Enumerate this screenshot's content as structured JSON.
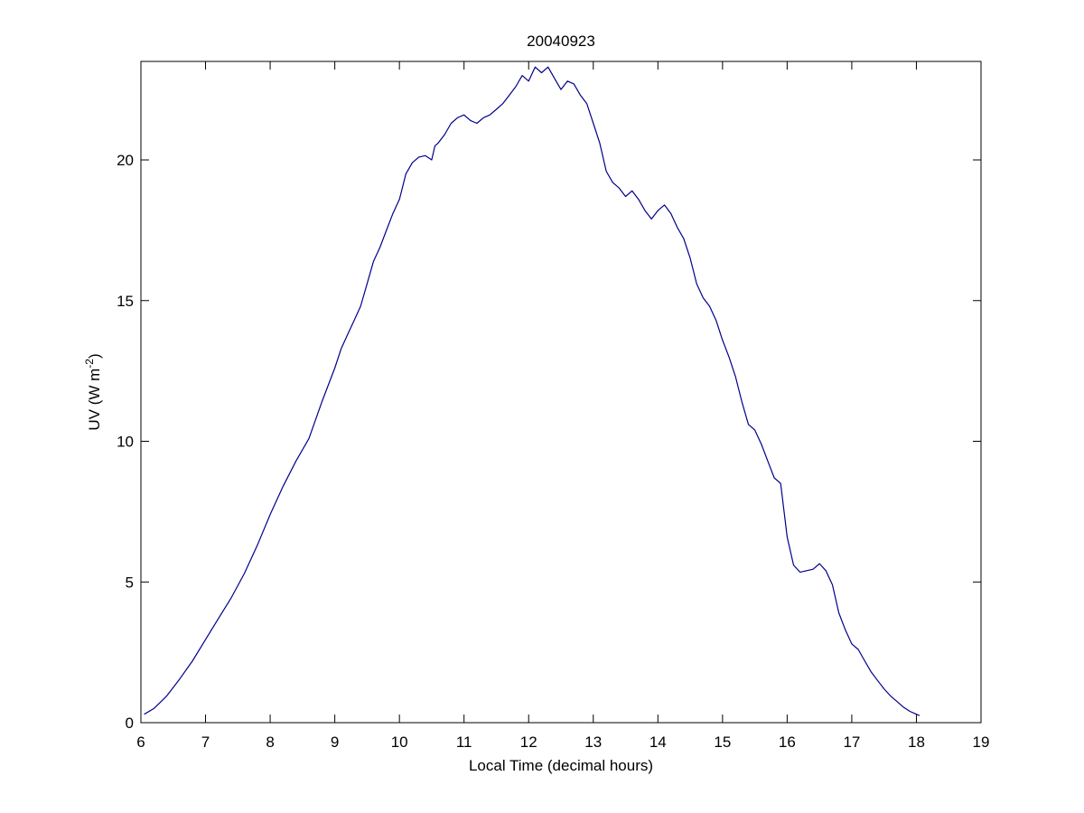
{
  "chart_data": {
    "type": "line",
    "title": "20040923",
    "xlabel": "Local Time (decimal hours)",
    "ylabel": "UV (W m",
    "ylabel_superscript": "-2",
    "ylabel_suffix": ")",
    "xlim": [
      6,
      19
    ],
    "ylim": [
      0,
      23.5
    ],
    "xticks": [
      6,
      7,
      8,
      9,
      10,
      11,
      12,
      13,
      14,
      15,
      16,
      17,
      18,
      19
    ],
    "yticks": [
      0,
      5,
      10,
      15,
      20
    ],
    "grid": false,
    "line_color": "#00008b",
    "series": [
      {
        "x": [
          6.05,
          6.2,
          6.4,
          6.6,
          6.8,
          7.0,
          7.2,
          7.4,
          7.6,
          7.8,
          8.0,
          8.2,
          8.4,
          8.6,
          8.8,
          9.0,
          9.1,
          9.2,
          9.3,
          9.4,
          9.5,
          9.6,
          9.7,
          9.8,
          9.9,
          10.0,
          10.1,
          10.2,
          10.3,
          10.4,
          10.5,
          10.55,
          10.6,
          10.7,
          10.8,
          10.9,
          11.0,
          11.1,
          11.2,
          11.3,
          11.4,
          11.5,
          11.6,
          11.7,
          11.8,
          11.9,
          12.0,
          12.1,
          12.2,
          12.3,
          12.4,
          12.5,
          12.6,
          12.7,
          12.8,
          12.9,
          13.0,
          13.1,
          13.2,
          13.3,
          13.4,
          13.5,
          13.6,
          13.7,
          13.8,
          13.9,
          14.0,
          14.1,
          14.2,
          14.3,
          14.4,
          14.5,
          14.6,
          14.7,
          14.8,
          14.9,
          15.0,
          15.1,
          15.2,
          15.3,
          15.4,
          15.5,
          15.6,
          15.7,
          15.8,
          15.9,
          16.0,
          16.1,
          16.2,
          16.3,
          16.4,
          16.5,
          16.6,
          16.7,
          16.8,
          16.9,
          17.0,
          17.1,
          17.2,
          17.3,
          17.4,
          17.5,
          17.6,
          17.7,
          17.8,
          17.9,
          18.0,
          18.05
        ],
        "y": [
          0.3,
          0.5,
          0.95,
          1.55,
          2.2,
          2.95,
          3.7,
          4.45,
          5.3,
          6.3,
          7.4,
          8.4,
          9.3,
          10.1,
          11.4,
          12.6,
          13.3,
          13.8,
          14.3,
          14.8,
          15.6,
          16.4,
          16.9,
          17.5,
          18.1,
          18.6,
          19.5,
          19.9,
          20.1,
          20.15,
          20.0,
          20.5,
          20.6,
          20.9,
          21.3,
          21.5,
          21.6,
          21.4,
          21.3,
          21.5,
          21.6,
          21.8,
          22.0,
          22.3,
          22.6,
          23.0,
          22.8,
          23.3,
          23.1,
          23.3,
          22.9,
          22.5,
          22.8,
          22.7,
          22.3,
          22.0,
          21.3,
          20.6,
          19.6,
          19.2,
          19.0,
          18.7,
          18.9,
          18.6,
          18.2,
          17.9,
          18.2,
          18.4,
          18.1,
          17.6,
          17.2,
          16.5,
          15.6,
          15.1,
          14.8,
          14.3,
          13.6,
          13.0,
          12.3,
          11.4,
          10.6,
          10.4,
          9.9,
          9.3,
          8.7,
          8.5,
          6.6,
          5.6,
          5.35,
          5.4,
          5.45,
          5.65,
          5.4,
          4.9,
          3.9,
          3.3,
          2.8,
          2.6,
          2.2,
          1.8,
          1.5,
          1.2,
          0.95,
          0.75,
          0.55,
          0.4,
          0.3,
          0.25
        ]
      }
    ]
  }
}
